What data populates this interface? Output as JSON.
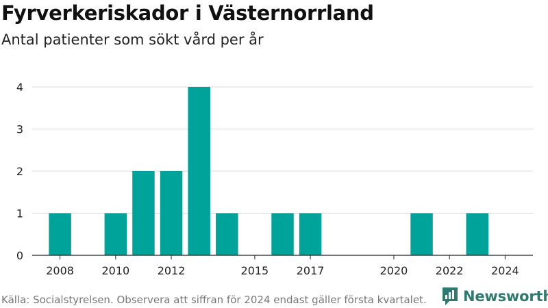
{
  "header": {
    "title": "Fyrverkeriskador i Västernorrland",
    "subtitle": "Antal patienter som sökt vård per år"
  },
  "footer": {
    "source": "Källa: Socialstyrelsen. Observera att siffran för 2024 endast gäller första kvartalet.",
    "brand": "Newsworthy"
  },
  "colors": {
    "bar": "#00a39a",
    "grid": "#d9d9d9",
    "axis": "#222222",
    "brand": "#2f7a6e"
  },
  "chart_data": {
    "type": "bar",
    "x": [
      2008,
      2010,
      2011,
      2012,
      2013,
      2014,
      2016,
      2017,
      2021,
      2023
    ],
    "values": [
      1,
      1,
      2,
      2,
      4,
      1,
      1,
      1,
      1,
      1
    ],
    "xlim": [
      2007,
      2025
    ],
    "ylim": [
      0,
      4
    ],
    "x_ticks": [
      "2008",
      "2010",
      "2012",
      "2015",
      "2017",
      "2020",
      "2022",
      "2024"
    ],
    "y_ticks": [
      "0",
      "1",
      "2",
      "3",
      "4"
    ],
    "grid": "horizontal",
    "legend": "none"
  }
}
